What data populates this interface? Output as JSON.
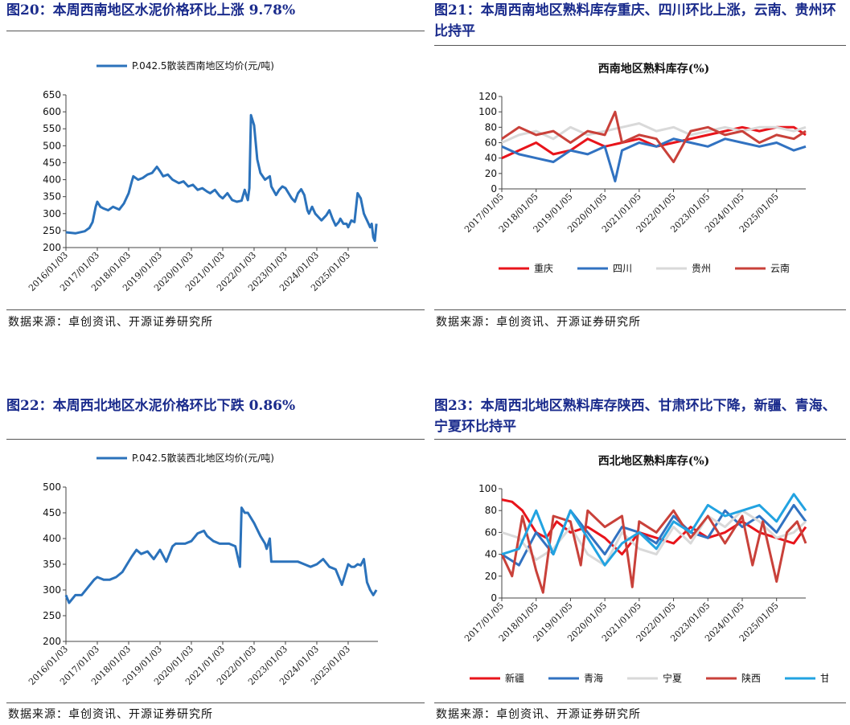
{
  "colors": {
    "title": "#1a2b8c",
    "price_line": "#2b72bb",
    "chongqing": "#e8141b",
    "sichuan": "#3172c1",
    "guizhou": "#d9d9d9",
    "yunnan": "#c9413a",
    "xinjiang": "#e8141b",
    "qinghai": "#3172c1",
    "ningxia": "#d9d9d9",
    "shaanxi": "#c9413a",
    "gansu": "#22a3e1"
  },
  "figures": [
    {
      "title": "图20：本周西南地区水泥价格环比上涨 9.78%",
      "source": "数据来源：卓创资讯、开源证券研究所",
      "chart_data": {
        "type": "line",
        "legend": [
          "P.042.5散装西南地区均价(元/吨)"
        ],
        "ylim": [
          200,
          650
        ],
        "yticks": [
          200,
          250,
          300,
          350,
          400,
          450,
          500,
          550,
          600,
          650
        ],
        "xlim": [
          2016.0,
          2025.95
        ],
        "xticks": [
          "2016/01/03",
          "2017/01/03",
          "2018/01/03",
          "2019/01/03",
          "2020/01/03",
          "2021/01/03",
          "2022/01/03",
          "2023/01/03",
          "2024/01/03",
          "2025/01/03"
        ],
        "series": [
          {
            "name": "P.042.5散装西南地区均价(元/吨)",
            "x": [
              2016.0,
              2016.3,
              2016.6,
              2016.75,
              2016.85,
              2016.95,
              2017.0,
              2017.1,
              2017.2,
              2017.35,
              2017.5,
              2017.7,
              2017.85,
              2018.0,
              2018.1,
              2018.15,
              2018.3,
              2018.45,
              2018.6,
              2018.75,
              2018.9,
              2019.0,
              2019.1,
              2019.25,
              2019.4,
              2019.6,
              2019.75,
              2019.9,
              2020.05,
              2020.2,
              2020.35,
              2020.5,
              2020.6,
              2020.75,
              2020.9,
              2021.0,
              2021.15,
              2021.3,
              2021.45,
              2021.6,
              2021.7,
              2021.75,
              2021.8,
              2021.85,
              2021.9,
              2022.0,
              2022.1,
              2022.2,
              2022.35,
              2022.5,
              2022.55,
              2022.7,
              2022.8,
              2022.9,
              2023.0,
              2023.1,
              2023.2,
              2023.3,
              2023.4,
              2023.5,
              2023.6,
              2023.7,
              2023.75,
              2023.85,
              2023.95,
              2024.05,
              2024.15,
              2024.3,
              2024.4,
              2024.5,
              2024.6,
              2024.7,
              2024.75,
              2024.85,
              2024.95,
              2025.0,
              2025.1,
              2025.2,
              2025.3,
              2025.4,
              2025.5,
              2025.55,
              2025.6,
              2025.7,
              2025.75,
              2025.8,
              2025.85,
              2025.9
            ],
            "y": [
              245,
              242,
              248,
              258,
              275,
              320,
              335,
              320,
              315,
              310,
              320,
              312,
              330,
              360,
              395,
              410,
              400,
              405,
              415,
              420,
              438,
              425,
              410,
              415,
              400,
              390,
              395,
              380,
              385,
              370,
              375,
              365,
              360,
              370,
              352,
              345,
              360,
              340,
              335,
              338,
              370,
              355,
              340,
              375,
              590,
              560,
              460,
              420,
              400,
              410,
              380,
              355,
              370,
              380,
              375,
              360,
              345,
              335,
              360,
              372,
              355,
              310,
              300,
              320,
              300,
              290,
              280,
              295,
              310,
              285,
              265,
              275,
              285,
              270,
              270,
              260,
              280,
              275,
              360,
              345,
              300,
              290,
              280,
              260,
              270,
              230,
              220,
              270
            ]
          }
        ]
      }
    },
    {
      "title": "图21：本周西南地区熟料库存重庆、四川环比上涨，云南、贵州环比持平",
      "source": "数据来源：卓创资讯、开源证券研究所",
      "chart_data": {
        "type": "line",
        "title": "西南地区熟料库存(%)",
        "ylim": [
          0,
          120
        ],
        "yticks": [
          0,
          20,
          40,
          60,
          80,
          100,
          120
        ],
        "xlim": [
          2017.0,
          2025.85
        ],
        "xticks": [
          "2017/01/05",
          "2018/01/05",
          "2019/01/05",
          "2020/01/05",
          "2021/01/05",
          "2022/01/05",
          "2023/01/05",
          "2024/01/05",
          "2025/01/05"
        ],
        "series": [
          {
            "name": "重庆",
            "x": [
              2017.0,
              2017.5,
              2018.0,
              2018.5,
              2019.0,
              2019.5,
              2020.0,
              2020.5,
              2021.0,
              2021.5,
              2022.0,
              2022.5,
              2023.0,
              2023.5,
              2024.0,
              2024.5,
              2025.0,
              2025.5,
              2025.85
            ],
            "y": [
              40,
              50,
              60,
              45,
              50,
              65,
              55,
              60,
              65,
              55,
              60,
              65,
              70,
              75,
              80,
              75,
              80,
              80,
              70
            ]
          },
          {
            "name": "四川",
            "x": [
              2017.0,
              2017.5,
              2018.0,
              2018.5,
              2019.0,
              2019.5,
              2020.0,
              2020.3,
              2020.5,
              2021.0,
              2021.5,
              2022.0,
              2022.5,
              2023.0,
              2023.5,
              2024.0,
              2024.5,
              2025.0,
              2025.5,
              2025.85
            ],
            "y": [
              55,
              45,
              40,
              35,
              50,
              45,
              55,
              10,
              50,
              60,
              55,
              65,
              60,
              55,
              65,
              60,
              55,
              60,
              50,
              55
            ]
          },
          {
            "name": "贵州",
            "x": [
              2017.0,
              2017.5,
              2018.0,
              2018.5,
              2019.0,
              2019.5,
              2020.0,
              2020.5,
              2021.0,
              2021.5,
              2022.0,
              2022.5,
              2023.0,
              2023.5,
              2024.0,
              2024.5,
              2025.0,
              2025.5,
              2025.85
            ],
            "y": [
              60,
              70,
              75,
              65,
              80,
              70,
              75,
              80,
              85,
              75,
              80,
              70,
              75,
              80,
              75,
              80,
              80,
              75,
              80
            ]
          },
          {
            "name": "云南",
            "x": [
              2017.0,
              2017.5,
              2018.0,
              2018.5,
              2019.0,
              2019.5,
              2020.0,
              2020.3,
              2020.5,
              2021.0,
              2021.5,
              2022.0,
              2022.5,
              2023.0,
              2023.5,
              2024.0,
              2024.5,
              2025.0,
              2025.5,
              2025.85
            ],
            "y": [
              65,
              80,
              70,
              75,
              60,
              75,
              70,
              100,
              60,
              70,
              65,
              35,
              75,
              80,
              70,
              75,
              60,
              70,
              65,
              75
            ]
          }
        ],
        "legend": [
          "重庆",
          "四川",
          "贵州",
          "云南"
        ]
      }
    },
    {
      "title": "图22：本周西北地区水泥价格环比下跌 0.86%",
      "source": "数据来源：卓创资讯、开源证券研究所",
      "chart_data": {
        "type": "line",
        "legend": [
          "P.042.5散装西北地区均价(元/吨)"
        ],
        "ylim": [
          200,
          500
        ],
        "yticks": [
          200,
          250,
          300,
          350,
          400,
          450,
          500
        ],
        "xlim": [
          2016.0,
          2025.95
        ],
        "xticks": [
          "2016/01/03",
          "2017/01/03",
          "2018/01/03",
          "2019/01/03",
          "2020/01/03",
          "2021/01/03",
          "2022/01/03",
          "2023/01/03",
          "2024/01/03",
          "2025/01/03"
        ],
        "series": [
          {
            "name": "P.042.5散装西北地区均价(元/吨)",
            "x": [
              2016.0,
              2016.1,
              2016.3,
              2016.5,
              2016.7,
              2016.9,
              2017.0,
              2017.2,
              2017.4,
              2017.6,
              2017.8,
              2017.95,
              2018.1,
              2018.25,
              2018.4,
              2018.6,
              2018.8,
              2019.0,
              2019.2,
              2019.4,
              2019.5,
              2019.6,
              2019.8,
              2020.0,
              2020.2,
              2020.4,
              2020.5,
              2020.7,
              2020.9,
              2021.0,
              2021.2,
              2021.4,
              2021.55,
              2021.6,
              2021.7,
              2021.8,
              2022.0,
              2022.2,
              2022.35,
              2022.4,
              2022.5,
              2022.55,
              2022.65,
              2022.8,
              2023.0,
              2023.2,
              2023.4,
              2023.6,
              2023.8,
              2024.0,
              2024.2,
              2024.4,
              2024.6,
              2024.8,
              2025.0,
              2025.1,
              2025.2,
              2025.3,
              2025.4,
              2025.5,
              2025.6,
              2025.7,
              2025.8,
              2025.9
            ],
            "y": [
              290,
              275,
              290,
              290,
              305,
              320,
              325,
              320,
              320,
              325,
              335,
              350,
              365,
              378,
              370,
              375,
              360,
              378,
              355,
              385,
              390,
              390,
              390,
              395,
              410,
              415,
              405,
              395,
              390,
              390,
              390,
              385,
              345,
              460,
              450,
              450,
              430,
              405,
              390,
              380,
              400,
              355,
              355,
              355,
              355,
              355,
              355,
              350,
              345,
              350,
              360,
              345,
              340,
              310,
              350,
              345,
              345,
              350,
              348,
              360,
              315,
              300,
              290,
              300
            ]
          }
        ]
      }
    },
    {
      "title": "图23：本周西北地区熟料库存陕西、甘肃环比下降，新疆、青海、宁夏环比持平",
      "source": "数据来源：卓创资讯、开源证券研究所",
      "chart_data": {
        "type": "line",
        "title": "西北地区熟料库存(%)",
        "ylim": [
          0,
          100
        ],
        "yticks": [
          0,
          20,
          40,
          60,
          80,
          100
        ],
        "xlim": [
          2017.0,
          2025.85
        ],
        "xticks": [
          "2017/01/05",
          "2018/01/05",
          "2019/01/05",
          "2020/01/05",
          "2021/01/05",
          "2022/01/05",
          "2023/01/05",
          "2024/01/05",
          "2025/01/05"
        ],
        "series": [
          {
            "name": "新疆",
            "x": [
              2017.0,
              2017.3,
              2017.6,
              2018.0,
              2018.3,
              2018.6,
              2019.0,
              2019.5,
              2020.0,
              2020.5,
              2021.0,
              2021.5,
              2022.0,
              2022.5,
              2023.0,
              2023.5,
              2024.0,
              2024.5,
              2025.0,
              2025.5,
              2025.85
            ],
            "y": [
              90,
              88,
              80,
              60,
              55,
              70,
              60,
              65,
              55,
              40,
              60,
              55,
              50,
              65,
              55,
              60,
              70,
              60,
              55,
              50,
              65
            ]
          },
          {
            "name": "青海",
            "x": [
              2017.0,
              2017.5,
              2018.0,
              2018.5,
              2019.0,
              2019.5,
              2020.0,
              2020.5,
              2021.0,
              2021.5,
              2022.0,
              2022.5,
              2023.0,
              2023.5,
              2024.0,
              2024.5,
              2025.0,
              2025.5,
              2025.85
            ],
            "y": [
              40,
              30,
              60,
              40,
              80,
              60,
              40,
              65,
              60,
              50,
              75,
              60,
              55,
              80,
              65,
              75,
              60,
              85,
              70
            ]
          },
          {
            "name": "宁夏",
            "x": [
              2017.0,
              2017.5,
              2018.0,
              2018.5,
              2019.0,
              2019.5,
              2020.0,
              2020.5,
              2021.0,
              2021.5,
              2022.0,
              2022.5,
              2023.0,
              2023.5,
              2024.0,
              2024.5,
              2025.0,
              2025.5,
              2025.85
            ],
            "y": [
              60,
              55,
              35,
              45,
              65,
              40,
              30,
              60,
              45,
              40,
              65,
              50,
              75,
              65,
              80,
              70,
              55,
              60,
              70
            ]
          },
          {
            "name": "陕西",
            "x": [
              2017.0,
              2017.3,
              2017.6,
              2018.0,
              2018.2,
              2018.5,
              2019.0,
              2019.3,
              2019.5,
              2020.0,
              2020.5,
              2020.8,
              2021.0,
              2021.5,
              2022.0,
              2022.5,
              2023.0,
              2023.5,
              2024.0,
              2024.3,
              2024.6,
              2025.0,
              2025.3,
              2025.6,
              2025.85
            ],
            "y": [
              40,
              20,
              75,
              25,
              5,
              75,
              70,
              30,
              80,
              65,
              75,
              10,
              70,
              60,
              80,
              55,
              75,
              50,
              75,
              30,
              70,
              15,
              60,
              70,
              50
            ]
          },
          {
            "name": "甘肃",
            "x": [
              2017.0,
              2017.5,
              2018.0,
              2018.5,
              2019.0,
              2019.5,
              2020.0,
              2020.5,
              2021.0,
              2021.5,
              2022.0,
              2022.5,
              2023.0,
              2023.5,
              2024.0,
              2024.5,
              2025.0,
              2025.5,
              2025.85
            ],
            "y": [
              40,
              45,
              80,
              40,
              80,
              55,
              30,
              50,
              60,
              45,
              70,
              60,
              85,
              75,
              80,
              85,
              70,
              95,
              80
            ]
          }
        ],
        "legend": [
          "新疆",
          "青海",
          "宁夏",
          "陕西",
          "甘肃"
        ]
      }
    }
  ]
}
